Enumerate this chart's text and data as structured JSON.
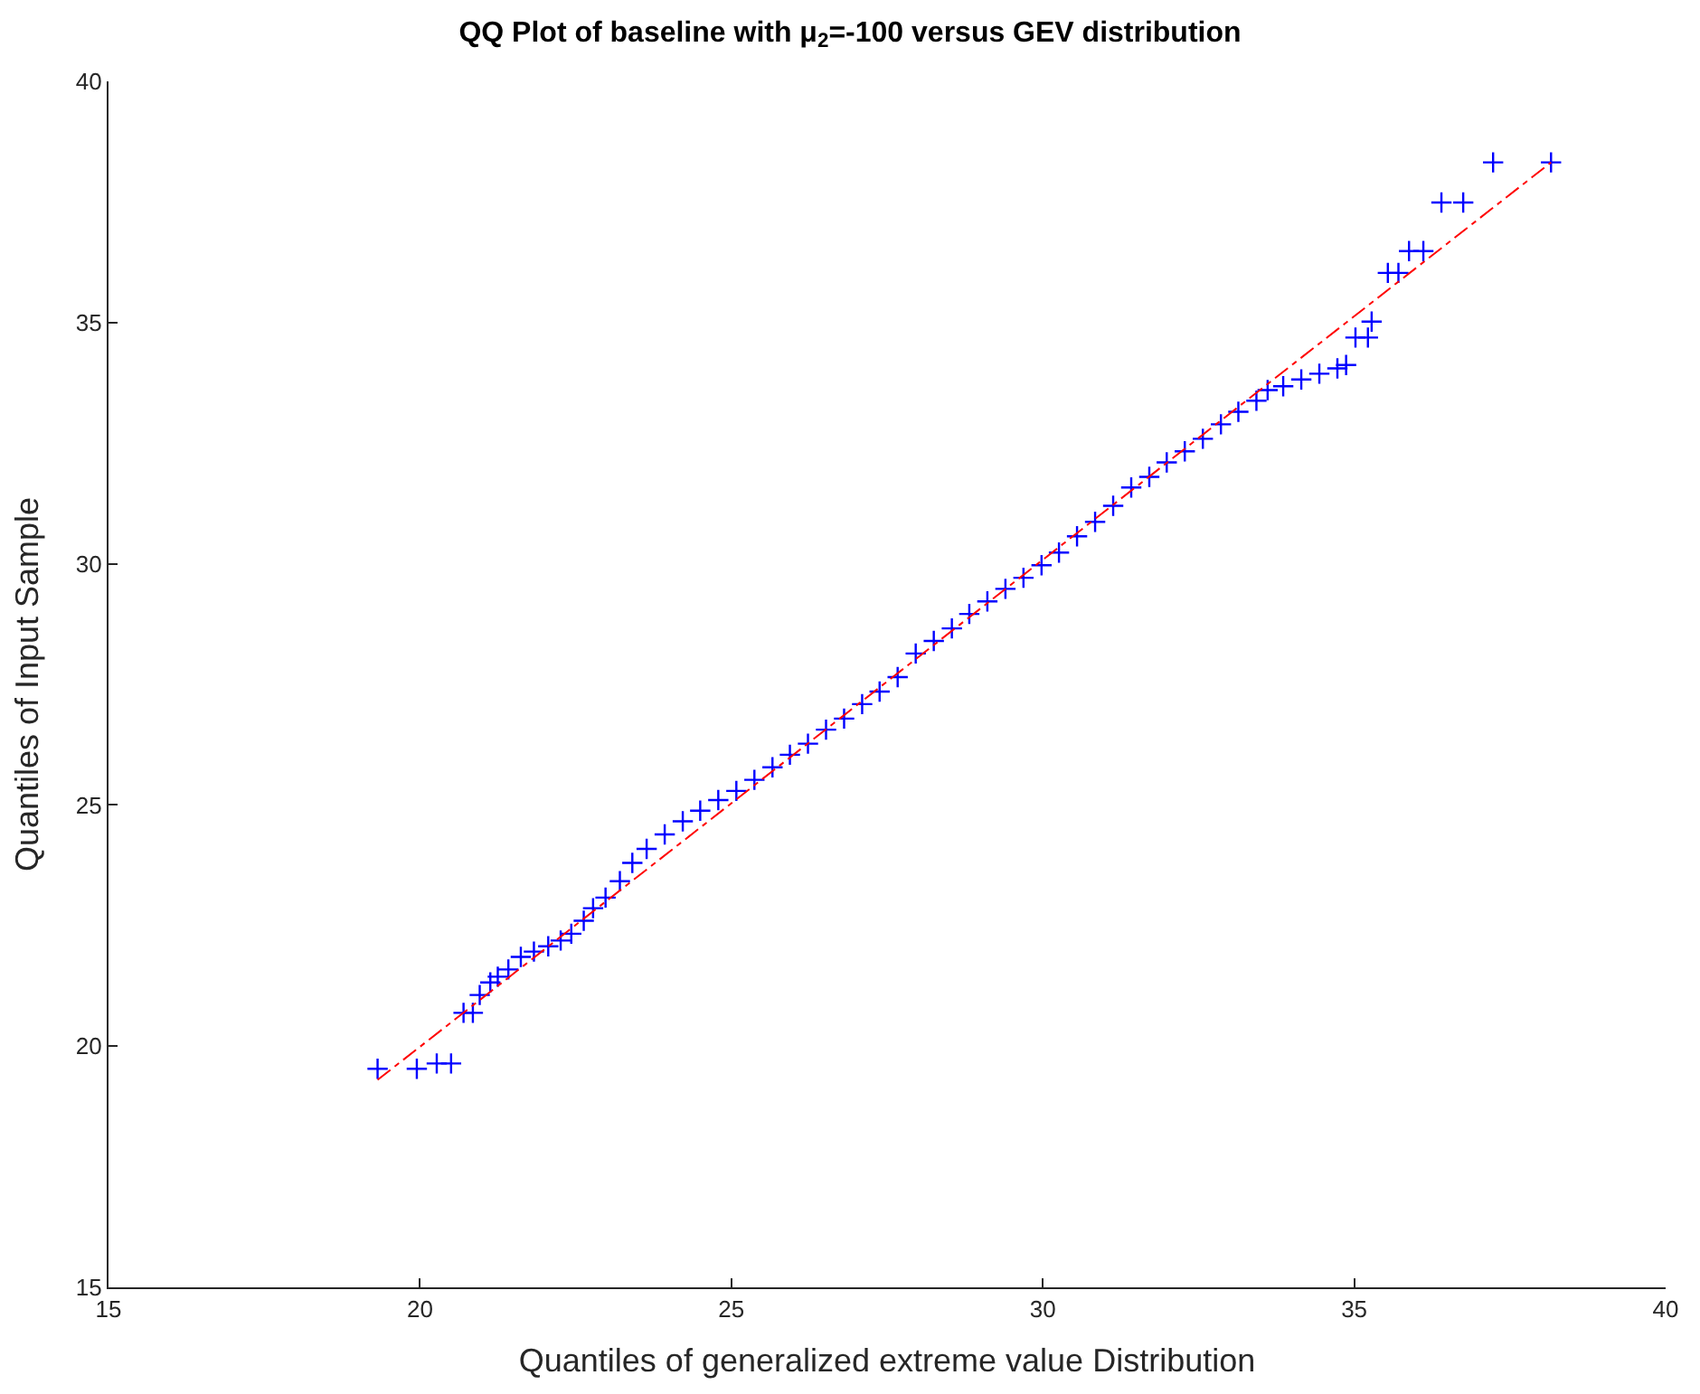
{
  "chart_data": {
    "type": "scatter",
    "title": "QQ Plot of baseline with μ$_{2}$=-100 versus GEV distribution",
    "xlabel": "Quantiles of generalized extreme value Distribution",
    "ylabel": "Quantiles of Input Sample",
    "xlim": [
      15,
      40
    ],
    "xticks": [
      15,
      20,
      25,
      30,
      35,
      40
    ],
    "ylim": [
      15,
      40
    ],
    "yticks": [
      15,
      20,
      25,
      30,
      35,
      40
    ],
    "legend": false,
    "series": [
      {
        "color": "#0000ff",
        "marker": "cross",
        "x": [
          19.32,
          19.95,
          20.27,
          20.5,
          20.7,
          20.85,
          20.96,
          21.13,
          21.25,
          21.42,
          21.62,
          21.83,
          22.06,
          22.26,
          22.43,
          22.63,
          22.78,
          22.98,
          23.21,
          23.41,
          23.64,
          23.93,
          24.22,
          24.5,
          24.79,
          25.08,
          25.37,
          25.66,
          25.94,
          26.23,
          26.52,
          26.81,
          27.1,
          27.38,
          27.67,
          27.96,
          28.25,
          28.54,
          28.82,
          29.11,
          29.4,
          29.69,
          29.98,
          30.26,
          30.55,
          30.84,
          31.13,
          31.42,
          31.71,
          31.99,
          32.28,
          32.57,
          32.86,
          33.14,
          33.43,
          33.61,
          33.86,
          34.15,
          34.44,
          34.73,
          34.87,
          35.02,
          35.22,
          35.28,
          35.54,
          35.71,
          35.88,
          36.11,
          36.4,
          36.75,
          37.23,
          38.16
        ],
        "values": [
          19.53,
          19.53,
          19.64,
          19.64,
          20.69,
          20.69,
          21.06,
          21.32,
          21.44,
          21.59,
          21.85,
          21.96,
          22.07,
          22.19,
          22.33,
          22.6,
          22.86,
          23.08,
          23.42,
          23.8,
          24.09,
          24.39,
          24.66,
          24.88,
          25.1,
          25.29,
          25.52,
          25.78,
          26.04,
          26.27,
          26.56,
          26.79,
          27.09,
          27.35,
          27.65,
          28.14,
          28.4,
          28.66,
          28.96,
          29.22,
          29.48,
          29.71,
          29.97,
          30.23,
          30.57,
          30.87,
          31.2,
          31.58,
          31.8,
          32.1,
          32.33,
          32.59,
          32.89,
          33.15,
          33.38,
          33.6,
          33.68,
          33.82,
          33.94,
          34.05,
          34.12,
          34.69,
          34.69,
          35.02,
          36.03,
          36.03,
          36.48,
          36.48,
          37.49,
          37.49,
          38.32,
          38.32
        ]
      },
      {
        "type": "line",
        "color": "#ff0000",
        "line_style": "dashdot",
        "x": [
          19.32,
          38.16
        ],
        "values": [
          19.3,
          38.32
        ]
      }
    ]
  }
}
